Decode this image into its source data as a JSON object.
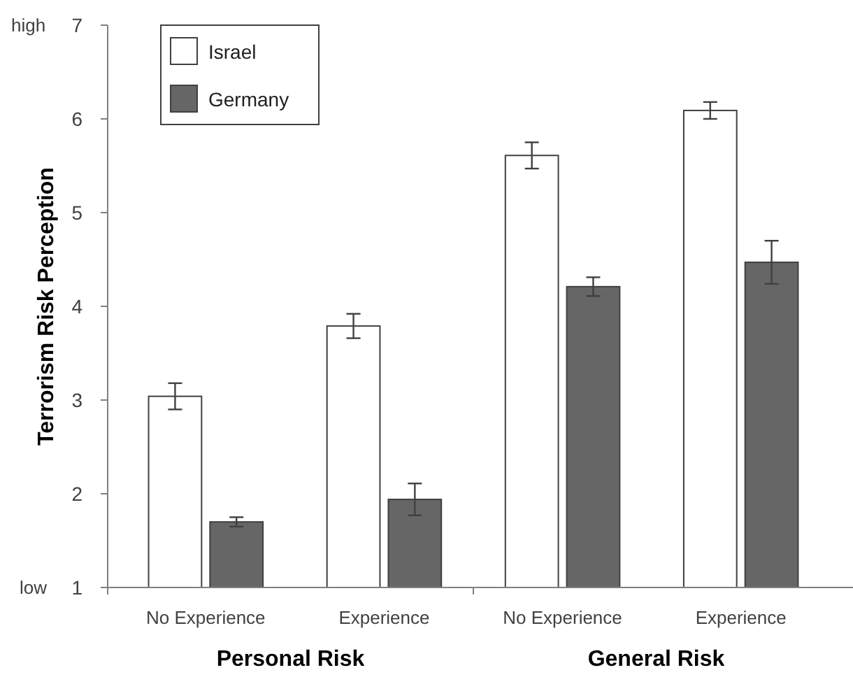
{
  "chart_data": {
    "type": "bar",
    "ylabel": "Terrorism Risk Perception",
    "categories": [
      "No Experience",
      "Experience",
      "No Experience",
      "Experience"
    ],
    "series": [
      {
        "name": "Israel",
        "color": "#ffffff",
        "values": [
          3.04,
          3.79,
          5.61,
          6.09
        ],
        "errors": [
          0.14,
          0.13,
          0.14,
          0.09
        ]
      },
      {
        "name": "Germany",
        "color": "#666666",
        "values": [
          1.7,
          1.94,
          4.21,
          4.47
        ],
        "errors": [
          0.05,
          0.17,
          0.1,
          0.23
        ]
      }
    ],
    "ylim": [
      1,
      7
    ],
    "yticks": [
      1,
      2,
      3,
      4,
      5,
      6,
      7
    ],
    "grid": false,
    "legend": "top left",
    "annotations": [
      "high",
      "low",
      "Personal Risk",
      "General Risk"
    ]
  }
}
